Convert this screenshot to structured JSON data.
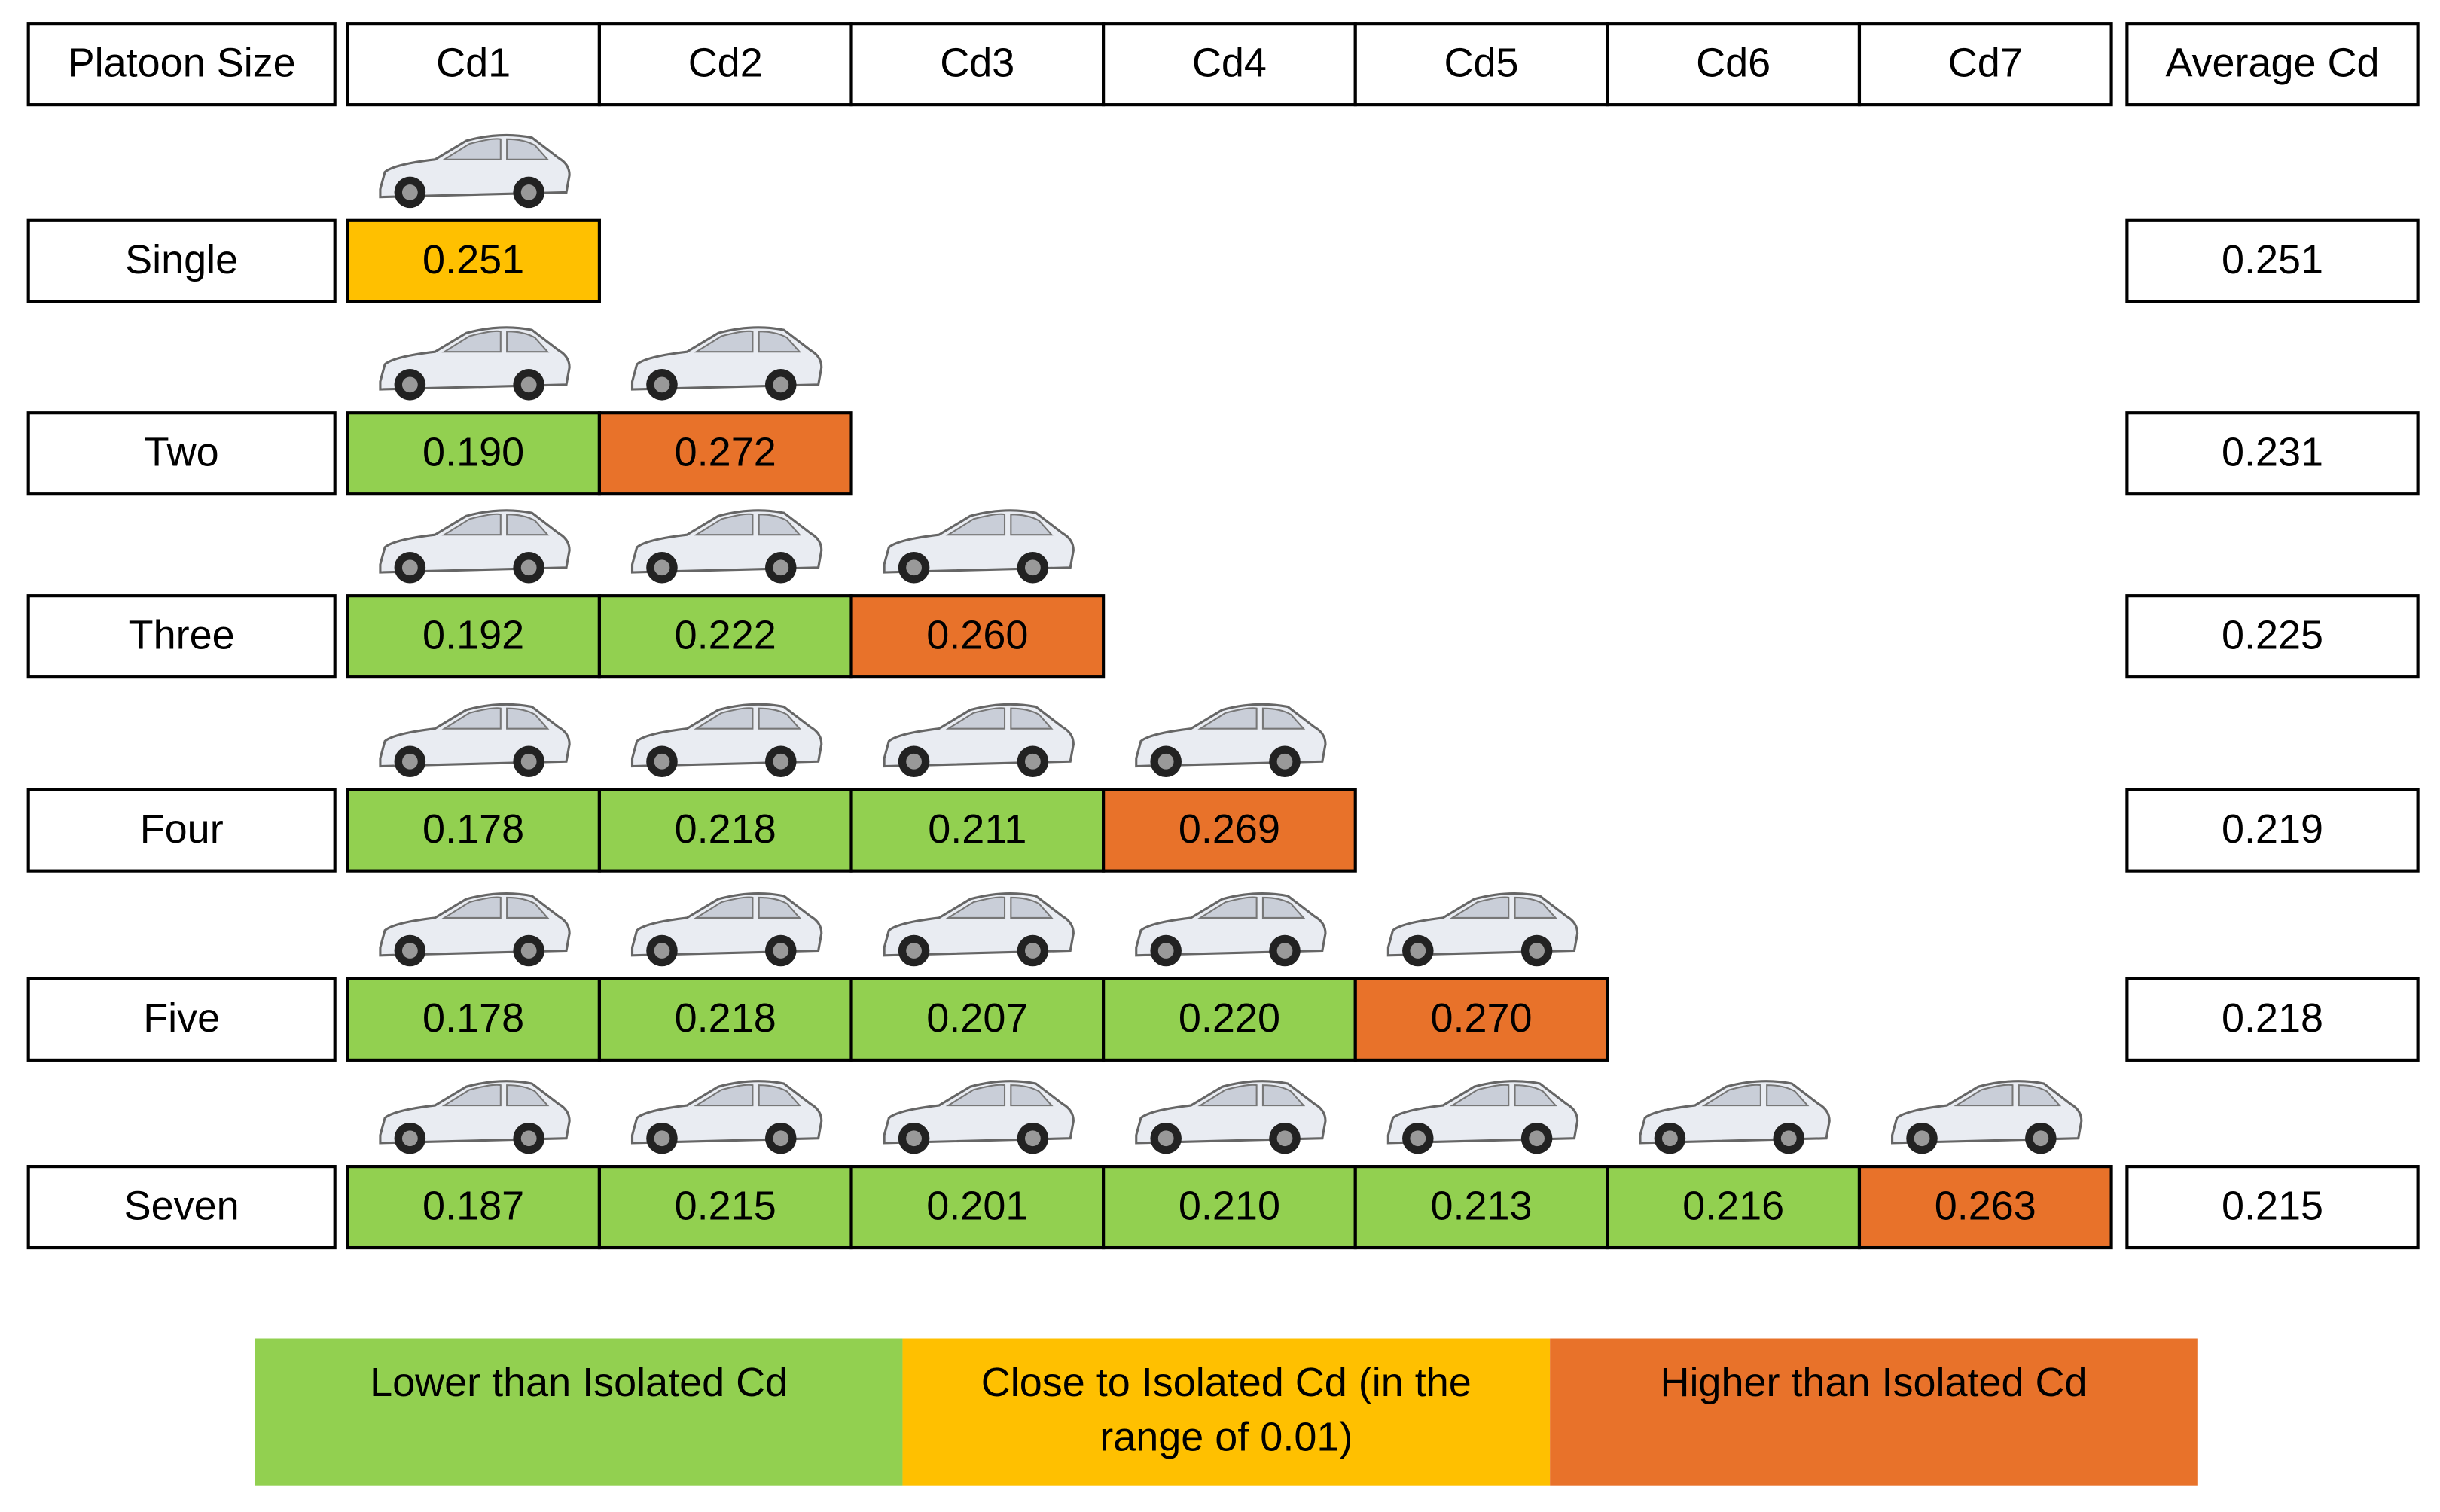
{
  "table": {
    "header": [
      "Platoon Size",
      "Cd1",
      "Cd2",
      "Cd3",
      "Cd4",
      "Cd5",
      "Cd6",
      "Cd7",
      "Average Cd"
    ],
    "rows": [
      {
        "label": "Single",
        "cells": [
          {
            "value": "0.251",
            "color": "#ffc000"
          }
        ],
        "average": "0.251"
      },
      {
        "label": "Two",
        "cells": [
          {
            "value": "0.190",
            "color": "#92d050"
          },
          {
            "value": "0.272",
            "color": "#e8722a"
          }
        ],
        "average": "0.231"
      },
      {
        "label": "Three",
        "cells": [
          {
            "value": "0.192",
            "color": "#92d050"
          },
          {
            "value": "0.222",
            "color": "#92d050"
          },
          {
            "value": "0.260",
            "color": "#e8722a"
          }
        ],
        "average": "0.225"
      },
      {
        "label": "Four",
        "cells": [
          {
            "value": "0.178",
            "color": "#92d050"
          },
          {
            "value": "0.218",
            "color": "#92d050"
          },
          {
            "value": "0.211",
            "color": "#92d050"
          },
          {
            "value": "0.269",
            "color": "#e8722a"
          }
        ],
        "average": "0.219"
      },
      {
        "label": "Five",
        "cells": [
          {
            "value": "0.178",
            "color": "#92d050"
          },
          {
            "value": "0.218",
            "color": "#92d050"
          },
          {
            "value": "0.207",
            "color": "#92d050"
          },
          {
            "value": "0.220",
            "color": "#92d050"
          },
          {
            "value": "0.270",
            "color": "#e8722a"
          }
        ],
        "average": "0.218"
      },
      {
        "label": "Seven",
        "cells": [
          {
            "value": "0.187",
            "color": "#92d050"
          },
          {
            "value": "0.215",
            "color": "#92d050"
          },
          {
            "value": "0.201",
            "color": "#92d050"
          },
          {
            "value": "0.210",
            "color": "#92d050"
          },
          {
            "value": "0.213",
            "color": "#92d050"
          },
          {
            "value": "0.216",
            "color": "#92d050"
          },
          {
            "value": "0.263",
            "color": "#e8722a"
          }
        ],
        "average": "0.215"
      }
    ]
  },
  "legend": [
    {
      "lines": [
        "Lower than Isolated Cd"
      ],
      "color": "#92d050"
    },
    {
      "lines": [
        "Close to Isolated Cd (in the",
        "range of 0.01)"
      ],
      "color": "#ffc000"
    },
    {
      "lines": [
        "Higher than Isolated Cd"
      ],
      "color": "#e8722a"
    }
  ]
}
